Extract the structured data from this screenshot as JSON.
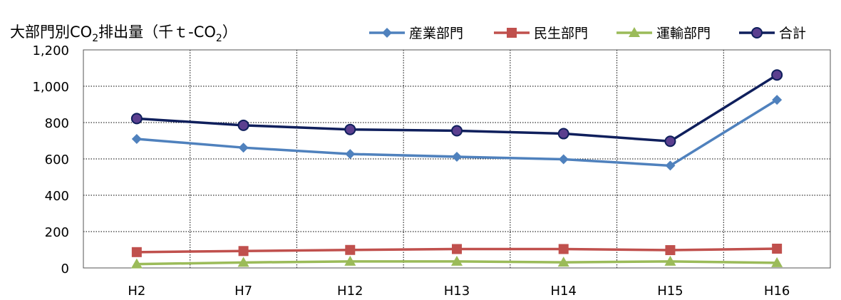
{
  "chart_data": {
    "type": "line",
    "title": "大部門別CO2排出量（千ｔ-CO2）",
    "title_parts": {
      "pre": "大部門別CO",
      "sub1": "2",
      "mid": "排出量（千ｔ-CO",
      "sub2": "2",
      "post": "）"
    },
    "categories": [
      "H2",
      "H7",
      "H12",
      "H13",
      "H14",
      "H15",
      "H16"
    ],
    "ylim": [
      0,
      1200
    ],
    "yticks": [
      0,
      200,
      400,
      600,
      800,
      1000,
      1200
    ],
    "ytick_labels": [
      "0",
      "200",
      "400",
      "600",
      "800",
      "1,000",
      "1,200"
    ],
    "grid": "dotted",
    "legend": "top-right",
    "series": [
      {
        "name": "産業部門",
        "values": [
          710,
          662,
          627,
          612,
          598,
          563,
          925
        ],
        "color": "#4f81bd",
        "marker": "diamond"
      },
      {
        "name": "民生部門",
        "values": [
          87,
          93,
          99,
          104,
          104,
          98,
          106
        ],
        "color": "#c0504d",
        "marker": "square"
      },
      {
        "name": "運輸部門",
        "values": [
          21,
          30,
          36,
          36,
          31,
          36,
          28
        ],
        "color": "#9bbb59",
        "marker": "triangle"
      },
      {
        "name": "合計",
        "values": [
          822,
          785,
          762,
          755,
          739,
          697,
          1062
        ],
        "color": "#0f1f5c",
        "marker": "circle"
      }
    ]
  }
}
